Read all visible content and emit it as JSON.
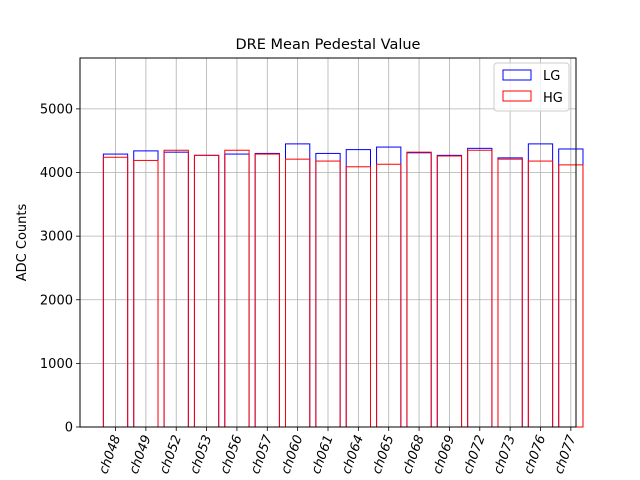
{
  "chart_data": {
    "type": "bar",
    "title": "DRE Mean Pedestal Value",
    "xlabel": "",
    "ylabel": "ADC Counts",
    "ylim": [
      0,
      5800
    ],
    "yticks": [
      0,
      1000,
      2000,
      3000,
      4000,
      5000
    ],
    "grid": true,
    "legend_position": "top-right",
    "categories": [
      "ch048",
      "ch049",
      "ch052",
      "ch053",
      "ch056",
      "ch057",
      "ch060",
      "ch061",
      "ch064",
      "ch065",
      "ch068",
      "ch069",
      "ch072",
      "ch073",
      "ch076",
      "ch077"
    ],
    "series": [
      {
        "name": "LG",
        "color": "#0000ff",
        "values": [
          4290,
          4340,
          4320,
          4270,
          4290,
          4300,
          4450,
          4300,
          4360,
          4400,
          4310,
          4270,
          4380,
          4230,
          4450,
          4370
        ]
      },
      {
        "name": "HG",
        "color": "#ff0000",
        "values": [
          4240,
          4190,
          4350,
          4270,
          4350,
          4290,
          4210,
          4180,
          4090,
          4130,
          4320,
          4260,
          4350,
          4210,
          4180,
          4120
        ]
      }
    ]
  }
}
